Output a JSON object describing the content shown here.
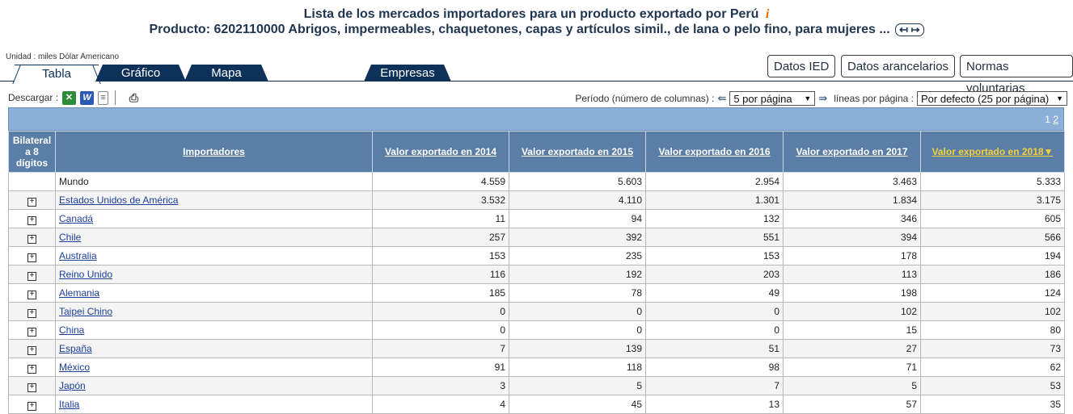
{
  "header": {
    "title": "Lista de los mercados importadores para un producto exportado por Perú",
    "info_icon": "i",
    "product_line": "Producto: 6202110000 Abrigos, impermeables, chaquetones, capas y artículos simil., de lana o pelo fino, para mujeres ...",
    "expand_glyph": "↤ ↦"
  },
  "unit_label": "Unidad : miles Dólar Americano",
  "tabs": [
    {
      "label": "Tabla"
    },
    {
      "label": "Gráfico"
    },
    {
      "label": "Mapa"
    },
    {
      "label": "Empresas"
    }
  ],
  "side_buttons": [
    {
      "label": "Datos IED"
    },
    {
      "label": "Datos arancelarios"
    },
    {
      "label": "Normas voluntarias"
    }
  ],
  "toolbar": {
    "download_label": "Descargar :",
    "period_label": "Período (número de columnas) :",
    "period_value": "5 por página",
    "lines_label": "líneas por página :",
    "lines_value": "Por defecto (25 por página)"
  },
  "pager": {
    "current": "1",
    "next": "2"
  },
  "table": {
    "headers": {
      "bilateral": "Bilateral a 8 dígitos",
      "importers": "Importadores",
      "y2014": "Valor exportado en 2014",
      "y2015": "Valor exportado en 2015",
      "y2016": "Valor exportado en 2016",
      "y2017": "Valor exportado en 2017",
      "y2018": "Valor exportado en 2018",
      "sort_icon": "▼"
    },
    "rows": [
      {
        "name": "Mundo",
        "v": [
          "4.559",
          "5.603",
          "2.954",
          "3.463",
          "5.333"
        ]
      },
      {
        "name": "Estados Unidos de América",
        "v": [
          "3.532",
          "4.110",
          "1.301",
          "1.834",
          "3.175"
        ]
      },
      {
        "name": "Canadá",
        "v": [
          "11",
          "94",
          "132",
          "346",
          "605"
        ]
      },
      {
        "name": "Chile",
        "v": [
          "257",
          "392",
          "551",
          "394",
          "566"
        ]
      },
      {
        "name": "Australia",
        "v": [
          "153",
          "235",
          "153",
          "178",
          "194"
        ]
      },
      {
        "name": "Reino Unido",
        "v": [
          "116",
          "192",
          "203",
          "113",
          "186"
        ]
      },
      {
        "name": "Alemania",
        "v": [
          "185",
          "78",
          "49",
          "198",
          "124"
        ]
      },
      {
        "name": "Taipei Chino",
        "v": [
          "0",
          "0",
          "0",
          "102",
          "102"
        ]
      },
      {
        "name": "China",
        "v": [
          "0",
          "0",
          "0",
          "15",
          "80"
        ]
      },
      {
        "name": "España",
        "v": [
          "7",
          "139",
          "51",
          "27",
          "73"
        ]
      },
      {
        "name": "México",
        "v": [
          "91",
          "118",
          "98",
          "71",
          "62"
        ]
      },
      {
        "name": "Japón",
        "v": [
          "3",
          "5",
          "7",
          "5",
          "53"
        ]
      },
      {
        "name": "Italia",
        "v": [
          "4",
          "45",
          "13",
          "57",
          "35"
        ]
      }
    ]
  }
}
